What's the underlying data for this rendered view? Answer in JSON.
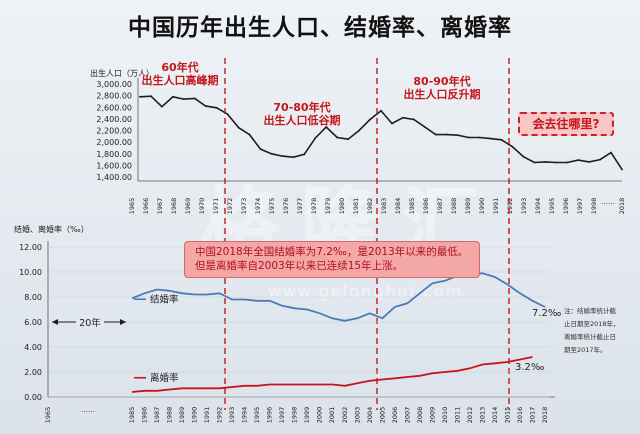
{
  "title": "中国历年出生人口、结婚率、离婚率",
  "colors": {
    "line": "#1d1d1d",
    "marriage": "#4a7bb5",
    "divorce": "#c4161c",
    "divider": "#c4161c"
  },
  "watermark": {
    "cn": "格隆汇",
    "url": "www.gelonghui.com"
  },
  "annotations": {
    "period1": [
      "60年代",
      "出生人口高峰期"
    ],
    "period2": [
      "70-80年代",
      "出生人口低谷期"
    ],
    "period3": [
      "80-90年代",
      "出生人口反升期"
    ],
    "question": "会去往哪里?",
    "callout": [
      "中国2018年全国结婚率为7.2‰，是2013年以来的最低。",
      "但是离婚率自2003年以来已连续15年上涨。"
    ],
    "gap": "20年",
    "end_marriage": "7.2‰",
    "end_divorce": "3.2‰",
    "note": [
      "注：结婚率统计截",
      "止日期至2018年，",
      "离婚率统计截止日",
      "期至2017年。"
    ],
    "ellipsis": "......"
  },
  "chart_data": [
    {
      "type": "line",
      "ylabel": "出生人口（万人）",
      "yticks": [
        "3,000.00",
        "2,800.00",
        "2,600.00",
        "2,400.00",
        "2,200.00",
        "2,000.00",
        "1,800.00",
        "1,600.00",
        "1,400.00"
      ],
      "ylim": [
        1400,
        3000
      ],
      "xticks": [
        "1965",
        "1966",
        "1967",
        "1968",
        "1969",
        "1970",
        "1971",
        "1972",
        "1973",
        "1974",
        "1975",
        "1976",
        "1977",
        "1978",
        "1979",
        "1980",
        "1981",
        "1982",
        "1983",
        "1984",
        "1985",
        "1986",
        "1987",
        "1988",
        "1989",
        "1990",
        "1991",
        "1992",
        "1993",
        "1994",
        "1995",
        "1996",
        "1997",
        "1998",
        "……",
        "2018"
      ],
      "series": [
        {
          "values": [
            2780,
            2790,
            2610,
            2780,
            2740,
            2750,
            2620,
            2590,
            2480,
            2250,
            2130,
            1880,
            1800,
            1760,
            1740,
            1790,
            2070,
            2260,
            2080,
            2050,
            2200,
            2390,
            2540,
            2320,
            2420,
            2390,
            2260,
            2130,
            2130,
            2120,
            2080,
            2080,
            2060,
            2040,
            1920,
            1750,
            1650,
            1660,
            1650,
            1650,
            1690,
            1660,
            1700,
            1820,
            1530
          ]
        }
      ]
    },
    {
      "type": "line",
      "ylabel": "结婚、离婚率（‰）",
      "yticks": [
        "12.00",
        "10.00",
        "8.00",
        "6.00",
        "4.00",
        "2.00",
        "0.00"
      ],
      "ylim": [
        0,
        12
      ],
      "xticks": [
        "1965",
        "……",
        "1985",
        "1986",
        "1987",
        "1988",
        "1989",
        "1990",
        "1991",
        "1992",
        "1993",
        "1994",
        "1995",
        "1996",
        "1997",
        "1998",
        "1999",
        "2000",
        "2001",
        "2002",
        "2003",
        "2004",
        "2005",
        "2006",
        "2007",
        "2008",
        "2009",
        "2010",
        "2011",
        "2012",
        "2013",
        "2014",
        "2015",
        "2016",
        "2017",
        "2018"
      ],
      "series": [
        {
          "name": "结婚率",
          "x": [
            "1985",
            "1986",
            "1987",
            "1988",
            "1989",
            "1990",
            "1991",
            "1992",
            "1993",
            "1994",
            "1995",
            "1996",
            "1997",
            "1998",
            "1999",
            "2000",
            "2001",
            "2002",
            "2003",
            "2004",
            "2005",
            "2006",
            "2007",
            "2008",
            "2009",
            "2010",
            "2011",
            "2012",
            "2013",
            "2014",
            "2015",
            "2016",
            "2017",
            "2018"
          ],
          "values": [
            7.9,
            8.3,
            8.6,
            8.5,
            8.3,
            8.2,
            8.2,
            8.3,
            7.8,
            7.8,
            7.7,
            7.7,
            7.3,
            7.1,
            7.0,
            6.7,
            6.3,
            6.1,
            6.3,
            6.7,
            6.3,
            7.2,
            7.5,
            8.3,
            9.1,
            9.3,
            9.7,
            9.8,
            9.9,
            9.6,
            9.0,
            8.3,
            7.7,
            7.2
          ]
        },
        {
          "name": "离婚率",
          "x": [
            "1985",
            "1986",
            "1987",
            "1988",
            "1989",
            "1990",
            "1991",
            "1992",
            "1993",
            "1994",
            "1995",
            "1996",
            "1997",
            "1998",
            "1999",
            "2000",
            "2001",
            "2002",
            "2003",
            "2004",
            "2005",
            "2006",
            "2007",
            "2008",
            "2009",
            "2010",
            "2011",
            "2012",
            "2013",
            "2014",
            "2015",
            "2016",
            "2017"
          ],
          "values": [
            0.4,
            0.5,
            0.5,
            0.6,
            0.7,
            0.7,
            0.7,
            0.7,
            0.8,
            0.9,
            0.9,
            1.0,
            1.0,
            1.0,
            1.0,
            1.0,
            1.0,
            0.9,
            1.1,
            1.3,
            1.4,
            1.5,
            1.6,
            1.7,
            1.9,
            2.0,
            2.1,
            2.3,
            2.6,
            2.7,
            2.8,
            3.0,
            3.2
          ]
        }
      ]
    }
  ]
}
